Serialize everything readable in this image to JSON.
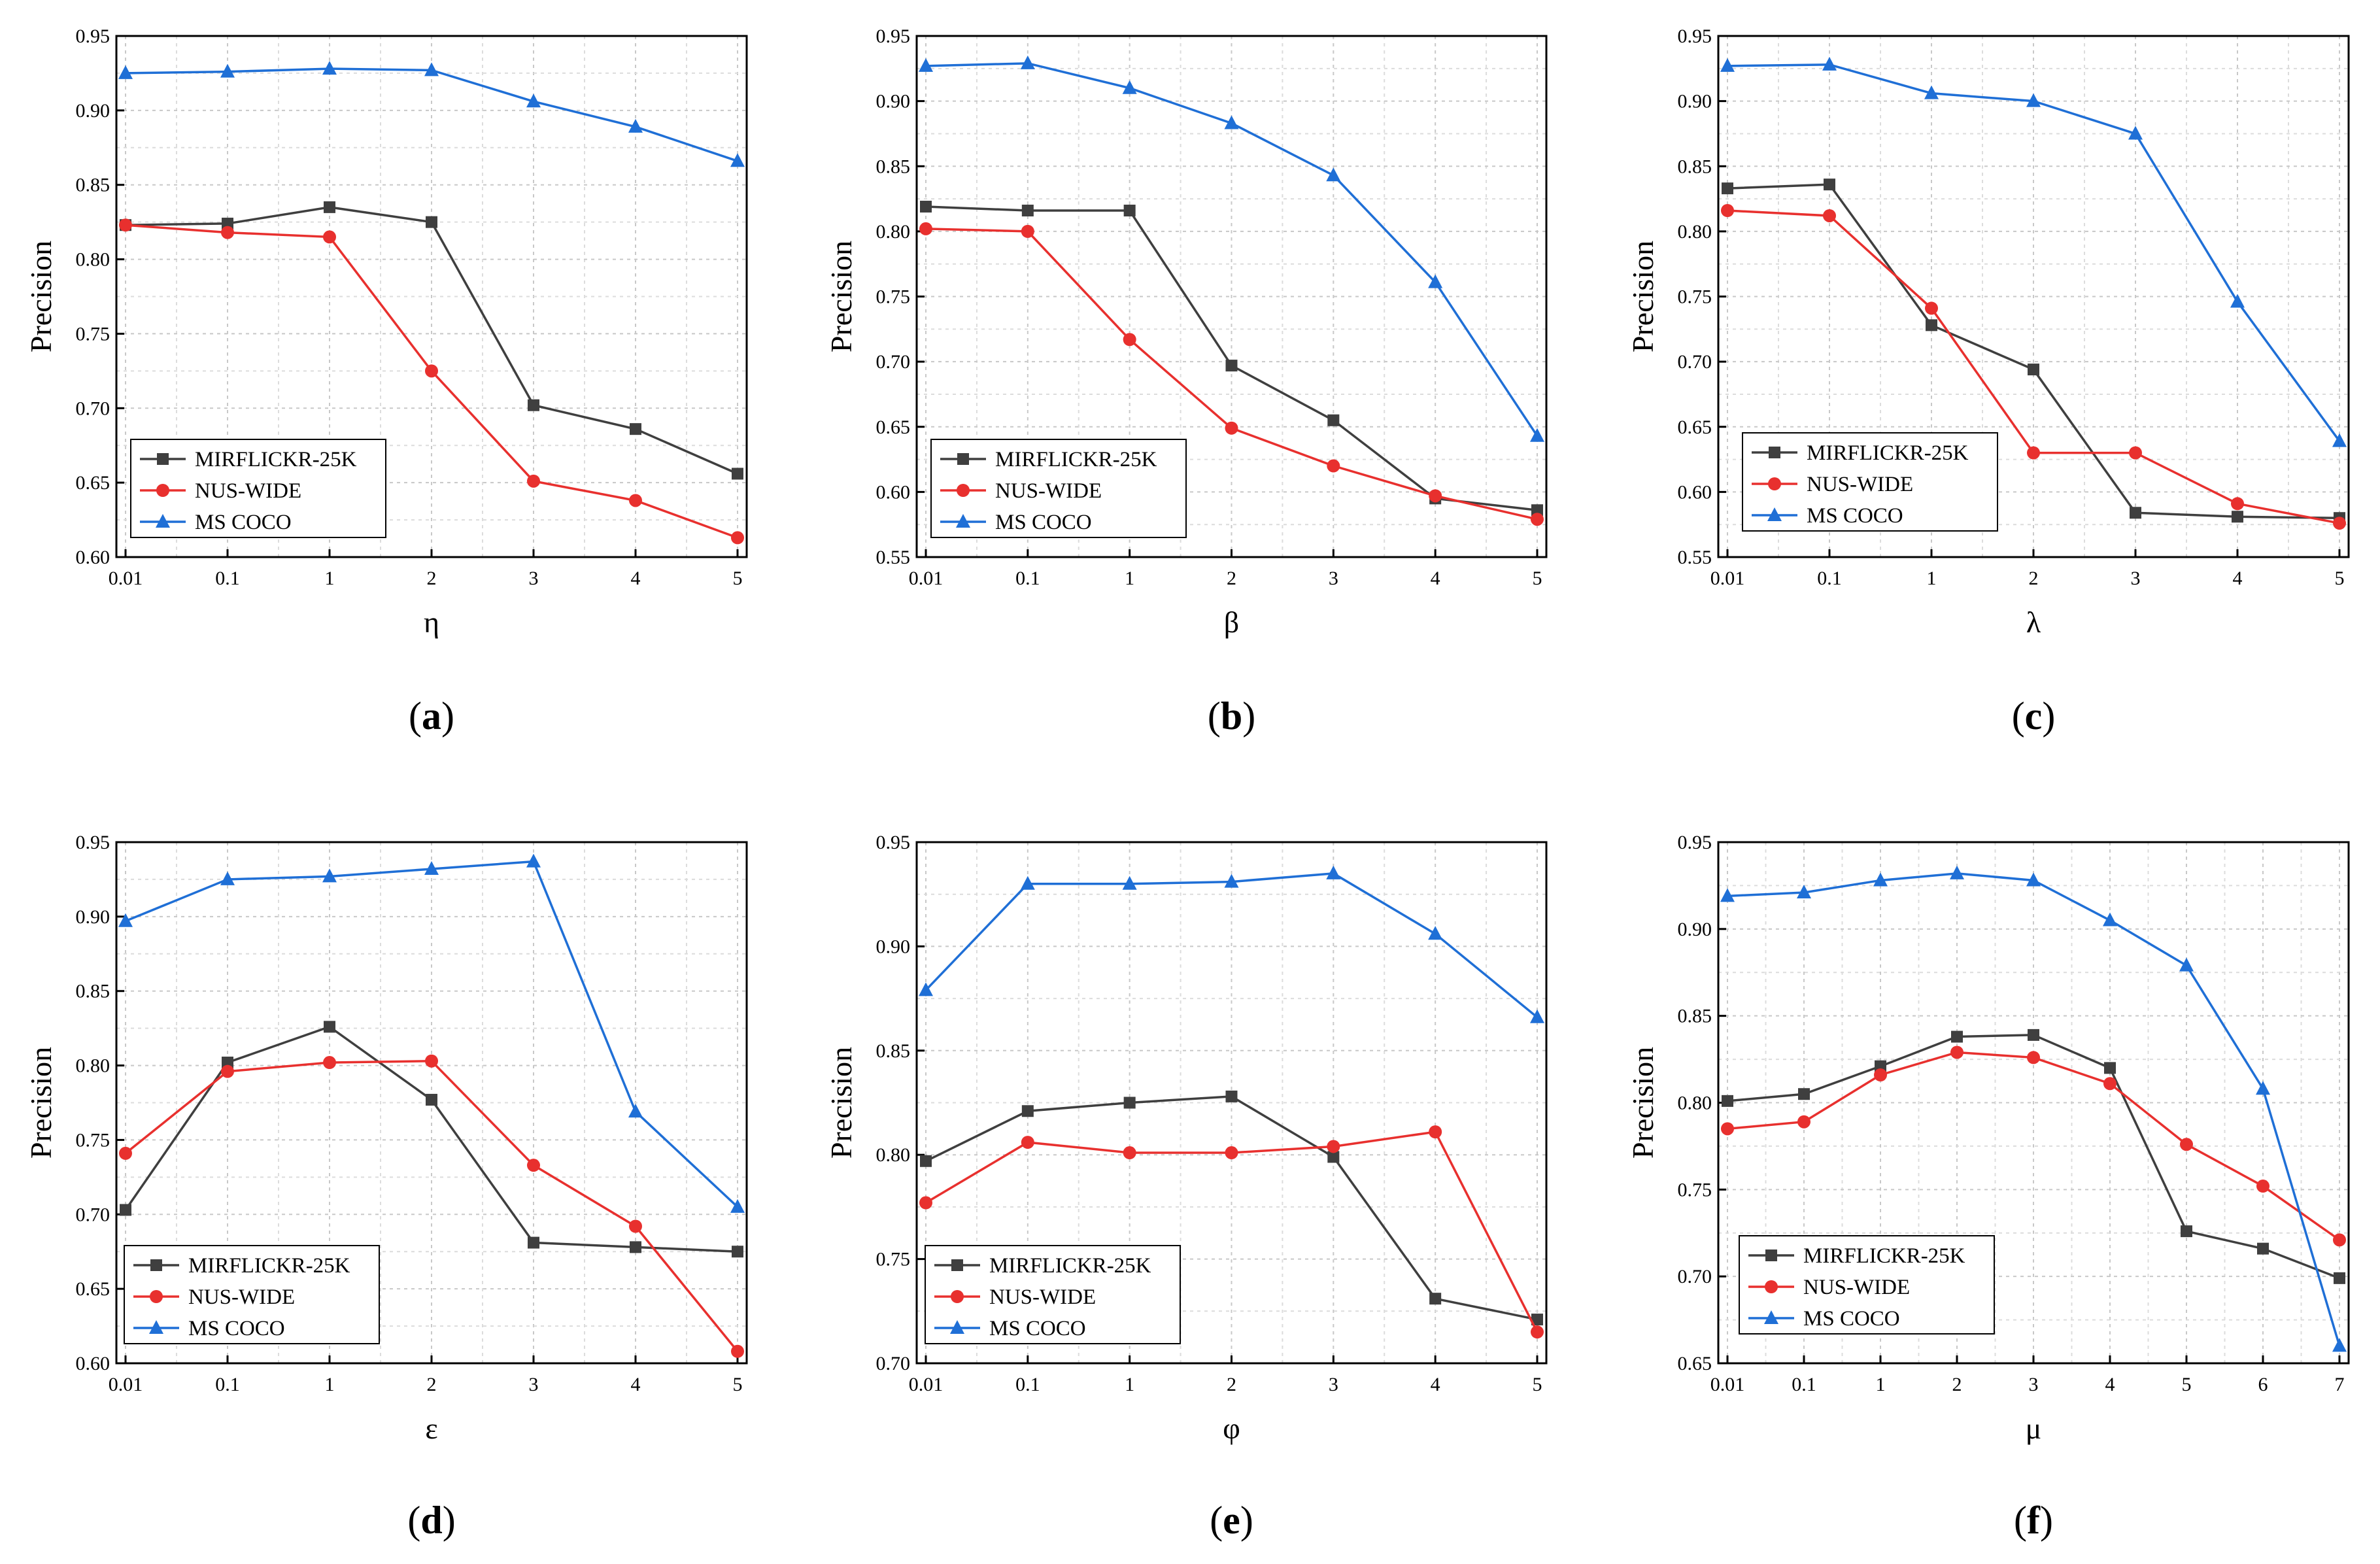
{
  "series_styles": [
    {
      "name": "MIRFLICKR-25K",
      "color": "#3f3f3f",
      "marker": "square"
    },
    {
      "name": "NUS-WIDE",
      "color": "#e8302e",
      "marker": "circle"
    },
    {
      "name": "MS COCO",
      "color": "#1f6fd6",
      "marker": "triangle"
    }
  ],
  "chart_data": [
    {
      "type": "line",
      "panel": "(a)",
      "caption_letter": "a",
      "xlabel": "η",
      "ylabel": "Precision",
      "categories": [
        "0.01",
        "0.1",
        "1",
        "2",
        "3",
        "4",
        "5"
      ],
      "ylim": [
        0.6,
        0.95
      ],
      "yticks": [
        "0.60",
        "0.65",
        "0.70",
        "0.75",
        "0.80",
        "0.85",
        "0.90",
        "0.95"
      ],
      "legend_position": "bottom-left",
      "series": [
        {
          "name": "MIRFLICKR-25K",
          "values": [
            0.823,
            0.824,
            0.835,
            0.825,
            0.702,
            0.686,
            0.656
          ]
        },
        {
          "name": "NUS-WIDE",
          "values": [
            0.823,
            0.818,
            0.815,
            0.725,
            0.651,
            0.638,
            0.613
          ]
        },
        {
          "name": "MS COCO",
          "values": [
            0.925,
            0.926,
            0.928,
            0.927,
            0.906,
            0.889,
            0.866
          ]
        }
      ]
    },
    {
      "type": "line",
      "panel": "(b)",
      "caption_letter": "b",
      "xlabel": "β",
      "ylabel": "Precision",
      "categories": [
        "0.01",
        "0.1",
        "1",
        "2",
        "3",
        "4",
        "5"
      ],
      "ylim": [
        0.55,
        0.95
      ],
      "yticks": [
        "0.55",
        "0.60",
        "0.65",
        "0.70",
        "0.75",
        "0.80",
        "0.85",
        "0.90",
        "0.95"
      ],
      "legend_position": "bottom-left",
      "series": [
        {
          "name": "MIRFLICKR-25K",
          "values": [
            0.819,
            0.816,
            0.816,
            0.697,
            0.655,
            0.595,
            0.586
          ]
        },
        {
          "name": "NUS-WIDE",
          "values": [
            0.802,
            0.8,
            0.717,
            0.649,
            0.62,
            0.597,
            0.579
          ]
        },
        {
          "name": "MS COCO",
          "values": [
            0.927,
            0.929,
            0.91,
            0.883,
            0.843,
            0.761,
            0.643
          ]
        }
      ]
    },
    {
      "type": "line",
      "panel": "(c)",
      "caption_letter": "c",
      "xlabel": "λ",
      "ylabel": "Precision",
      "categories": [
        "0.01",
        "0.1",
        "1",
        "2",
        "3",
        "4",
        "5"
      ],
      "ylim": [
        0.55,
        0.95
      ],
      "yticks": [
        "0.55",
        "0.60",
        "0.65",
        "0.70",
        "0.75",
        "0.80",
        "0.85",
        "0.90",
        "0.95"
      ],
      "legend_position": "bottom-left",
      "series": [
        {
          "name": "MIRFLICKR-25K",
          "values": [
            0.833,
            0.836,
            0.728,
            0.694,
            0.584,
            0.581,
            0.58
          ]
        },
        {
          "name": "NUS-WIDE",
          "values": [
            0.816,
            0.812,
            0.741,
            0.63,
            0.63,
            0.591,
            0.576
          ]
        },
        {
          "name": "MS COCO",
          "values": [
            0.927,
            0.928,
            0.906,
            0.9,
            0.875,
            0.746,
            0.639
          ]
        }
      ]
    },
    {
      "type": "line",
      "panel": "(d)",
      "caption_letter": "d",
      "xlabel": "ε",
      "ylabel": "Precision",
      "categories": [
        "0.01",
        "0.1",
        "1",
        "2",
        "3",
        "4",
        "5"
      ],
      "ylim": [
        0.6,
        0.95
      ],
      "yticks": [
        "0.60",
        "0.65",
        "0.70",
        "0.75",
        "0.80",
        "0.85",
        "0.90",
        "0.95"
      ],
      "legend_position": "bottom-left",
      "series": [
        {
          "name": "MIRFLICKR-25K",
          "values": [
            0.703,
            0.802,
            0.826,
            0.777,
            0.681,
            0.678,
            0.675
          ]
        },
        {
          "name": "NUS-WIDE",
          "values": [
            0.741,
            0.796,
            0.802,
            0.803,
            0.733,
            0.692,
            0.608
          ]
        },
        {
          "name": "MS COCO",
          "values": [
            0.897,
            0.925,
            0.927,
            0.932,
            0.937,
            0.769,
            0.705
          ]
        }
      ]
    },
    {
      "type": "line",
      "panel": "(e)",
      "caption_letter": "e",
      "xlabel": "φ",
      "ylabel": "Precision",
      "categories": [
        "0.01",
        "0.1",
        "1",
        "2",
        "3",
        "4",
        "5"
      ],
      "ylim": [
        0.7,
        0.95
      ],
      "yticks": [
        "0.70",
        "0.75",
        "0.80",
        "0.85",
        "0.90",
        "0.95"
      ],
      "legend_position": "bottom-left",
      "series": [
        {
          "name": "MIRFLICKR-25K",
          "values": [
            0.797,
            0.821,
            0.825,
            0.828,
            0.799,
            0.731,
            0.721
          ]
        },
        {
          "name": "NUS-WIDE",
          "values": [
            0.777,
            0.806,
            0.801,
            0.801,
            0.804,
            0.811,
            0.715
          ]
        },
        {
          "name": "MS COCO",
          "values": [
            0.879,
            0.93,
            0.93,
            0.931,
            0.935,
            0.906,
            0.866
          ]
        }
      ]
    },
    {
      "type": "line",
      "panel": "(f)",
      "caption_letter": "f",
      "xlabel": "μ",
      "ylabel": "Precision",
      "categories": [
        "0.01",
        "0.1",
        "1",
        "2",
        "3",
        "4",
        "5",
        "6",
        "7"
      ],
      "ylim": [
        0.65,
        0.95
      ],
      "yticks": [
        "0.65",
        "0.70",
        "0.75",
        "0.80",
        "0.85",
        "0.90",
        "0.95"
      ],
      "legend_position": "bottom-left",
      "series": [
        {
          "name": "MIRFLICKR-25K",
          "values": [
            0.801,
            0.805,
            0.821,
            0.838,
            0.839,
            0.82,
            0.726,
            0.716,
            0.699
          ]
        },
        {
          "name": "NUS-WIDE",
          "values": [
            0.785,
            0.789,
            0.816,
            0.829,
            0.826,
            0.811,
            0.776,
            0.752,
            0.721
          ]
        },
        {
          "name": "MS COCO",
          "values": [
            0.919,
            0.921,
            0.928,
            0.932,
            0.928,
            0.905,
            0.879,
            0.808,
            0.66
          ]
        }
      ]
    }
  ]
}
